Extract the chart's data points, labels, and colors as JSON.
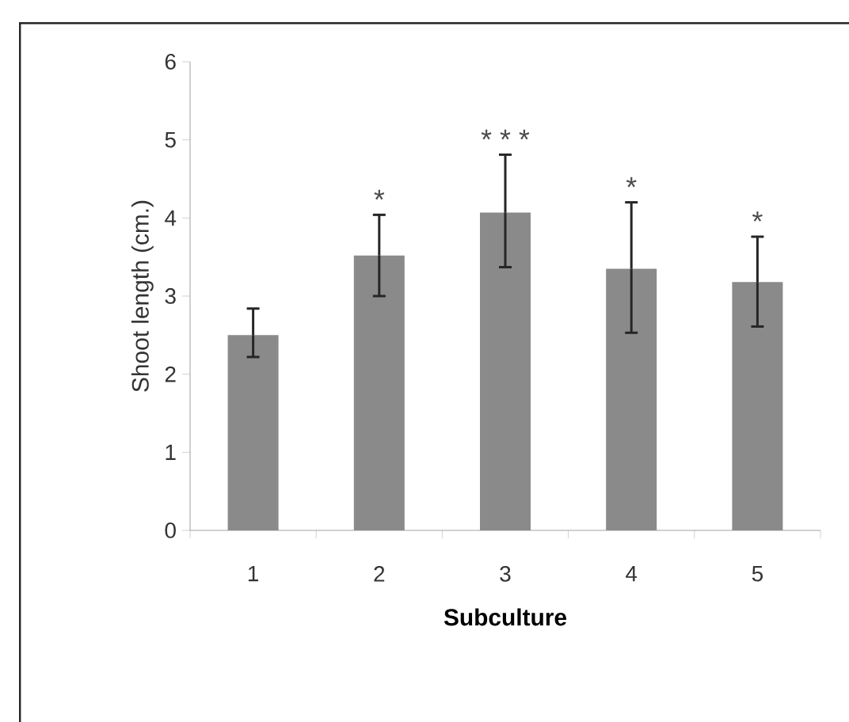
{
  "chart_data": {
    "type": "bar",
    "xlabel": "Subculture",
    "ylabel": "Shoot length (cm.)",
    "categories": [
      "1",
      "2",
      "3",
      "4",
      "5"
    ],
    "values": [
      2.5,
      3.52,
      4.07,
      3.35,
      3.18
    ],
    "errors": [
      [
        2.22,
        2.84
      ],
      [
        3.0,
        4.04
      ],
      [
        3.37,
        4.81
      ],
      [
        2.53,
        4.2
      ],
      [
        2.61,
        3.76
      ]
    ],
    "color": "#8a8a8a",
    "ylim": [
      0,
      6
    ],
    "yticks": [
      0,
      1,
      2,
      3,
      4,
      5,
      6
    ],
    "annotations": [
      "*",
      "* * *",
      "*",
      "*"
    ]
  }
}
